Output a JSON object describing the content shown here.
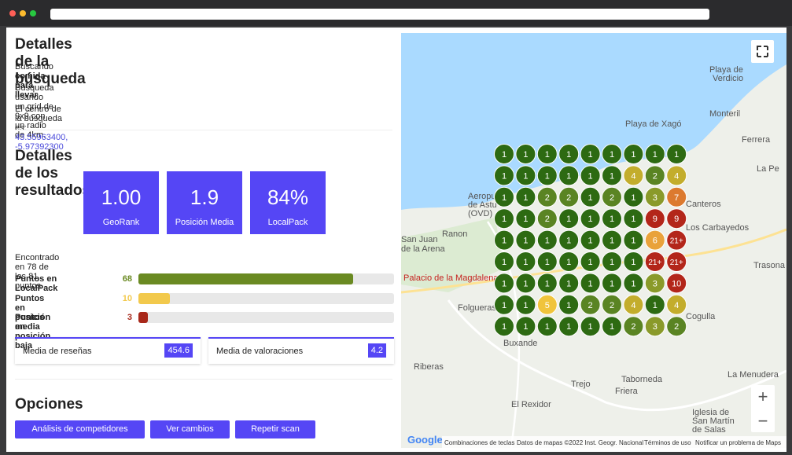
{
  "header": {
    "title": "Detalles de la búsqueda",
    "searching_prefix": "Buscando",
    "keyword": "comida para llevar",
    "grid_text": "Búsqueda usando un grid de 9x9 con un radio de 4km.",
    "center_prefix": "El centro de la búsqueda es:",
    "center_coords": "43.55963400, -5.97392300"
  },
  "results": {
    "title": "Detalles de los resultados",
    "cards": [
      {
        "value": "1.00",
        "label": "GeoRank"
      },
      {
        "value": "1.9",
        "label": "Posición Media"
      },
      {
        "value": "84%",
        "label": "LocalPack"
      }
    ],
    "found": {
      "prefix": "Encontrado en",
      "found": 78,
      "middle": "de los",
      "total": 81,
      "suffix": "puntos."
    },
    "bars": [
      {
        "label": "Puntos en LocalPack",
        "value": 68,
        "color": "#6a8a22"
      },
      {
        "label": "Puntos en posición media",
        "value": 10,
        "color": "#f2c94c"
      },
      {
        "label": "Puntos en posición baja",
        "value": 3,
        "color": "#a8281a"
      }
    ],
    "stats": [
      {
        "label": "Media de reseñas",
        "value": "454.6"
      },
      {
        "label": "Media de valoraciones",
        "value": "4.2"
      }
    ]
  },
  "options": {
    "title": "Opciones",
    "buttons": [
      "Análisis de competidores",
      "Ver cambios",
      "Repetir scan"
    ]
  },
  "map": {
    "grid": [
      [
        "1",
        "1",
        "1",
        "1",
        "1",
        "1",
        "1",
        "1",
        "1"
      ],
      [
        "1",
        "1",
        "1",
        "1",
        "1",
        "1",
        "4",
        "2",
        "4"
      ],
      [
        "1",
        "1",
        "2",
        "2",
        "1",
        "2",
        "1",
        "3",
        "7"
      ],
      [
        "1",
        "1",
        "2",
        "1",
        "1",
        "1",
        "1",
        "9",
        "9"
      ],
      [
        "1",
        "1",
        "1",
        "1",
        "1",
        "1",
        "1",
        "6",
        "21+"
      ],
      [
        "1",
        "1",
        "1",
        "1",
        "1",
        "1",
        "1",
        "21+",
        "21+"
      ],
      [
        "1",
        "1",
        "1",
        "1",
        "1",
        "1",
        "1",
        "3",
        "10"
      ],
      [
        "1",
        "1",
        "5",
        "1",
        "2",
        "2",
        "4",
        "1",
        "4"
      ],
      [
        "1",
        "1",
        "1",
        "1",
        "1",
        "1",
        "2",
        "3",
        "2"
      ]
    ],
    "labels": [
      "Playa de",
      "Verdicio",
      "Monteril",
      "Playa de Xagó",
      "Ferrera",
      "La Pe",
      "Aeropuerto",
      "de Astu",
      "(OVD)",
      "Canteros",
      "Los Carbayedos",
      "Ranon",
      "San Juan",
      "de la Arena",
      "Trasona",
      "Palacio de la Magdalena",
      "Folgueras",
      "Cogulla",
      "Buxande",
      "Riberas",
      "La Menudera",
      "Trejo",
      "Taborneda",
      "Friera",
      "El Rexidor",
      "Iglesia de",
      "San Martín",
      "de Salas"
    ],
    "zoom_in": "+",
    "zoom_out": "−",
    "logo": "Google",
    "footer": [
      "Combinaciones de teclas",
      "Datos de mapas ©2022 Inst. Geogr. Nacional",
      "Términos de uso",
      "Notificar un problema de Maps"
    ]
  }
}
